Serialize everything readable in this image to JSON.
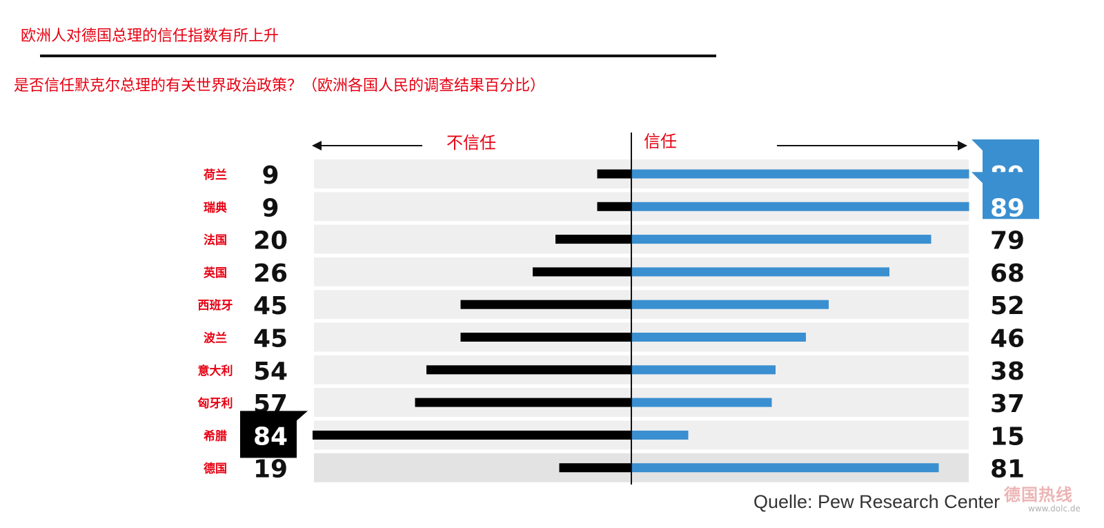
{
  "header": {
    "title": "欧洲人对德国总理的信任指数有所上升",
    "subtitle": "是否信任默克尔总理的有关世界政治政策？（欧洲各国人民的调查结果百分比）"
  },
  "footer": {
    "source": "Quelle: Pew Research Center",
    "watermark": "德国热线",
    "watermark_url": "www.dolc.de"
  },
  "chart_data": {
    "type": "bar",
    "subtype": "diverging-horizontal",
    "left_label": "不信任",
    "right_label": "信任",
    "categories": [
      "荷兰",
      "瑞典",
      "法国",
      "英国",
      "西班牙",
      "波兰",
      "意大利",
      "匈牙利",
      "希腊",
      "德国"
    ],
    "series": [
      {
        "name": "不信任",
        "values": [
          9,
          9,
          20,
          26,
          45,
          45,
          54,
          57,
          84,
          19
        ]
      },
      {
        "name": "信任",
        "values": [
          89,
          89,
          79,
          68,
          52,
          46,
          38,
          37,
          15,
          81
        ]
      }
    ],
    "xlim": [
      -84,
      89
    ],
    "highlighted": {
      "trust_max": [
        "荷兰",
        "瑞典"
      ],
      "distrust_max": [
        "希腊"
      ]
    },
    "colors": {
      "distrust": "#000000",
      "trust": "#3a8fd0",
      "row_band": "#efefef",
      "row_band_home": "#e3e3e3",
      "label": "#e60012",
      "value_text": "#111111",
      "badge_trust": "#3a8fd0",
      "badge_distrust": "#000000"
    }
  }
}
